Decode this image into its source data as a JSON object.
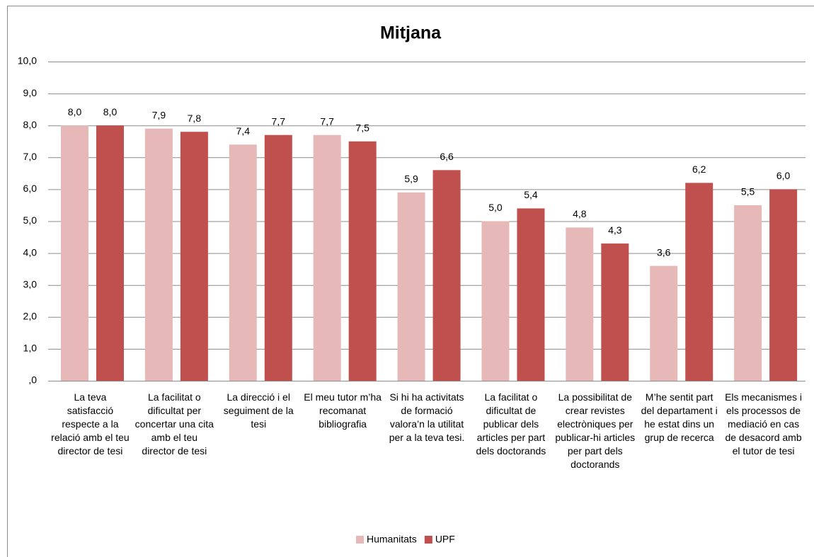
{
  "chart_data": {
    "type": "bar",
    "title": "Mitjana",
    "categories": [
      "La teva satisfacció respecte a la relació amb el teu director de tesi",
      "La facilitat o dificultat per concertar una cita amb el teu director de tesi",
      "La direcció i el seguiment de la tesi",
      "El meu tutor m’ha recomanat bibliografia",
      "Si hi ha activitats de formació valora’n la utilitat per a la teva tesi.",
      "La facilitat o dificultat de publicar dels articles per part dels doctorands",
      "La possibilitat de crear revistes electròniques per publicar-hi articles per part dels doctorands",
      "M’he sentit part del departament i he estat dins un grup de recerca",
      "Els mecanismes i els processos de mediació en cas de desacord amb el tutor de tesi"
    ],
    "series": [
      {
        "name": "Humanitats",
        "color": "#e6b9b8",
        "values": [
          8.0,
          7.9,
          7.4,
          7.7,
          5.9,
          5.0,
          4.8,
          3.6,
          5.5
        ],
        "value_labels": [
          "8,0",
          "7,9",
          "7,4",
          "7,7",
          "5,9",
          "5,0",
          "4,8",
          "3,6",
          "5,5"
        ]
      },
      {
        "name": "UPF",
        "color": "#c0504d",
        "values": [
          8.0,
          7.8,
          7.7,
          7.5,
          6.6,
          5.4,
          4.3,
          6.2,
          6.0
        ],
        "value_labels": [
          "8,0",
          "7,8",
          "7,7",
          "7,5",
          "6,6",
          "5,4",
          "4,3",
          "6,2",
          "6,0"
        ]
      }
    ],
    "ylim": [
      0,
      10
    ],
    "yticks": [
      {
        "value": 0,
        "label": ",0"
      },
      {
        "value": 1,
        "label": "1,0"
      },
      {
        "value": 2,
        "label": "2,0"
      },
      {
        "value": 3,
        "label": "3,0"
      },
      {
        "value": 4,
        "label": "4,0"
      },
      {
        "value": 5,
        "label": "5,0"
      },
      {
        "value": 6,
        "label": "6,0"
      },
      {
        "value": 7,
        "label": "7,0"
      },
      {
        "value": 8,
        "label": "8,0"
      },
      {
        "value": 9,
        "label": "9,0"
      },
      {
        "value": 10,
        "label": "10,0"
      }
    ],
    "grid": true,
    "legend": "bottom"
  }
}
